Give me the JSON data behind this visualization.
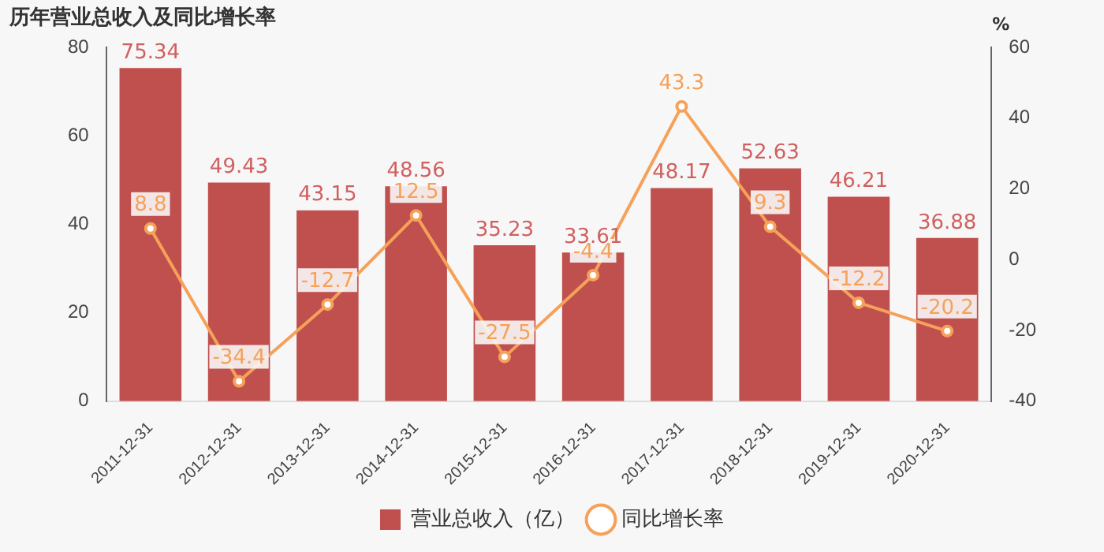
{
  "chart_data": {
    "type": "bar",
    "title": "历年营业总收入及同比增长率",
    "y2label": "%",
    "categories": [
      "2011-12-31",
      "2012-12-31",
      "2013-12-31",
      "2014-12-31",
      "2015-12-31",
      "2016-12-31",
      "2017-12-31",
      "2018-12-31",
      "2019-12-31",
      "2020-12-31"
    ],
    "series": [
      {
        "name": "营业总收入（亿）",
        "type": "bar",
        "color": "#c0504d",
        "values": [
          75.34,
          49.43,
          43.15,
          48.56,
          35.23,
          33.61,
          48.17,
          52.63,
          46.21,
          36.88
        ]
      },
      {
        "name": "同比增长率",
        "type": "line",
        "axis": "y2",
        "color": "#f5a15a",
        "values": [
          8.8,
          -34.4,
          -12.7,
          12.5,
          -27.5,
          -4.4,
          43.3,
          9.3,
          -12.2,
          -20.2
        ]
      }
    ],
    "ylim": [
      0,
      80
    ],
    "yticks": [
      0,
      20,
      40,
      60,
      80
    ],
    "y2lim": [
      -40,
      60
    ],
    "y2ticks": [
      -40,
      -20,
      0,
      20,
      40,
      60
    ],
    "data_labels": true,
    "grid": false,
    "legend": "bottom",
    "marker": "circle",
    "line_style": "solid"
  }
}
